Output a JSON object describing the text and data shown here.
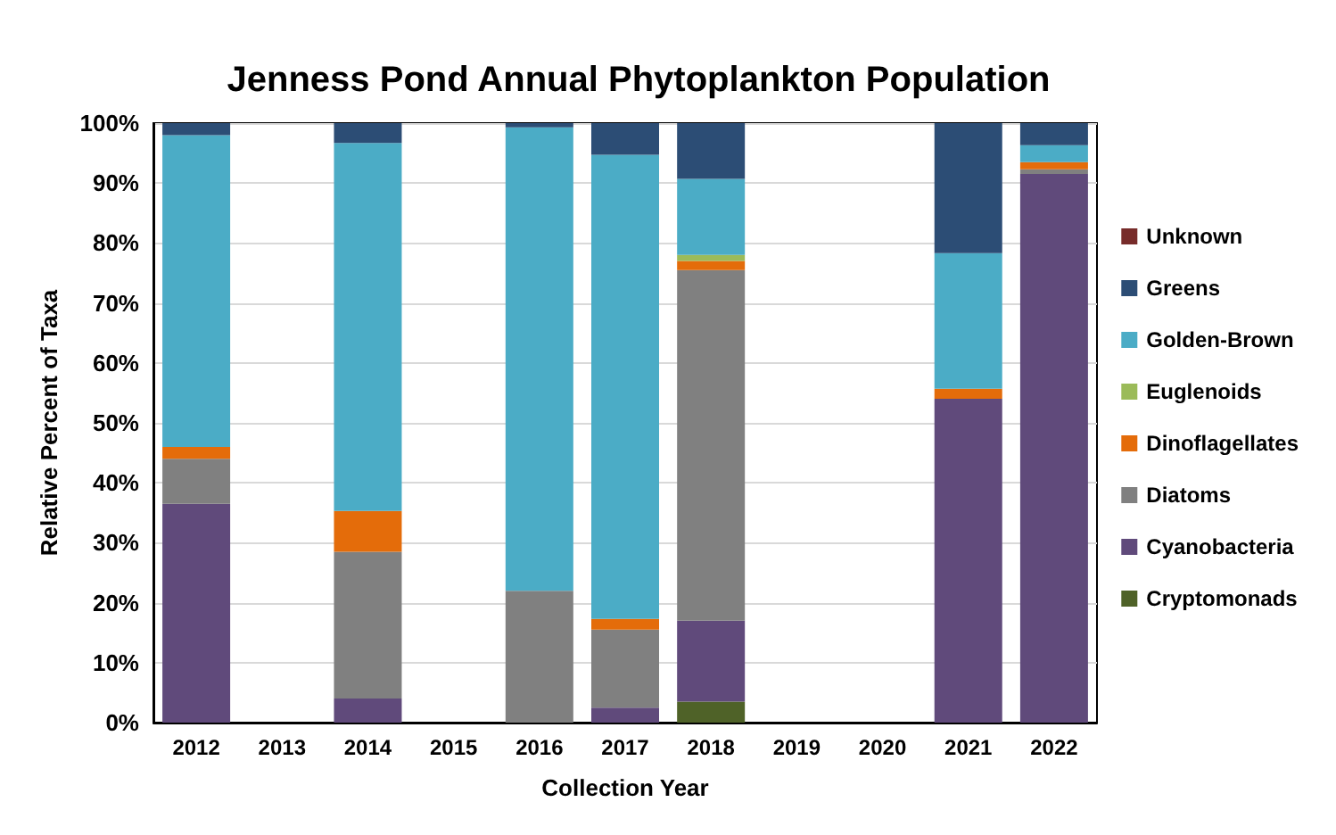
{
  "chart_data": {
    "type": "bar",
    "title": "Jenness Pond Annual Phytoplankton Population",
    "xlabel": "Collection Year",
    "ylabel": "Relative Percent of Taxa",
    "stacked": true,
    "categories": [
      "2012",
      "2013",
      "2014",
      "2015",
      "2016",
      "2017",
      "2018",
      "2019",
      "2020",
      "2021",
      "2022"
    ],
    "series": [
      {
        "name": "Cryptomonads",
        "color": "#4f6228",
        "values": [
          0,
          0,
          0,
          0,
          0,
          0,
          3.5,
          0,
          0,
          0,
          0
        ]
      },
      {
        "name": "Cyanobacteria",
        "color": "#604a7b",
        "values": [
          36.5,
          0,
          4,
          0,
          0,
          2.5,
          13.5,
          0,
          0,
          54,
          91.5
        ]
      },
      {
        "name": "Diatoms",
        "color": "#808080",
        "values": [
          7.5,
          0,
          24.5,
          0,
          22,
          13,
          58.5,
          0,
          0,
          0,
          0.8
        ]
      },
      {
        "name": "Dinoflagellates",
        "color": "#e46c0a",
        "values": [
          2,
          0,
          6.8,
          0,
          0,
          1.8,
          1.5,
          0,
          0,
          1.7,
          1.2
        ]
      },
      {
        "name": "Euglenoids",
        "color": "#9bbb59",
        "values": [
          0,
          0,
          0,
          0,
          0,
          0,
          1,
          0,
          0,
          0,
          0
        ]
      },
      {
        "name": "Golden-Brown",
        "color": "#4bacc6",
        "values": [
          52,
          0,
          61.4,
          0,
          77.3,
          77.4,
          12.7,
          0,
          0,
          22.6,
          2.8
        ]
      },
      {
        "name": "Greens",
        "color": "#2c4d75",
        "values": [
          2,
          0,
          3.3,
          0,
          0.7,
          5.3,
          9.3,
          0,
          0,
          21.7,
          3.7
        ]
      },
      {
        "name": "Unknown",
        "color": "#772c2a",
        "values": [
          0,
          0,
          0,
          0,
          0,
          0,
          0,
          0,
          0,
          0,
          0
        ]
      }
    ],
    "ylim": [
      0,
      100
    ],
    "yticks": [
      {
        "value": 0,
        "label": "0%"
      },
      {
        "value": 10,
        "label": "10%"
      },
      {
        "value": 20,
        "label": "20%"
      },
      {
        "value": 30,
        "label": "30%"
      },
      {
        "value": 40,
        "label": "40%"
      },
      {
        "value": 50,
        "label": "50%"
      },
      {
        "value": 60,
        "label": "60%"
      },
      {
        "value": 70,
        "label": "70%"
      },
      {
        "value": 80,
        "label": "80%"
      },
      {
        "value": 90,
        "label": "90%"
      },
      {
        "value": 100,
        "label": "100%"
      }
    ],
    "grid": "y",
    "legend": "right"
  }
}
